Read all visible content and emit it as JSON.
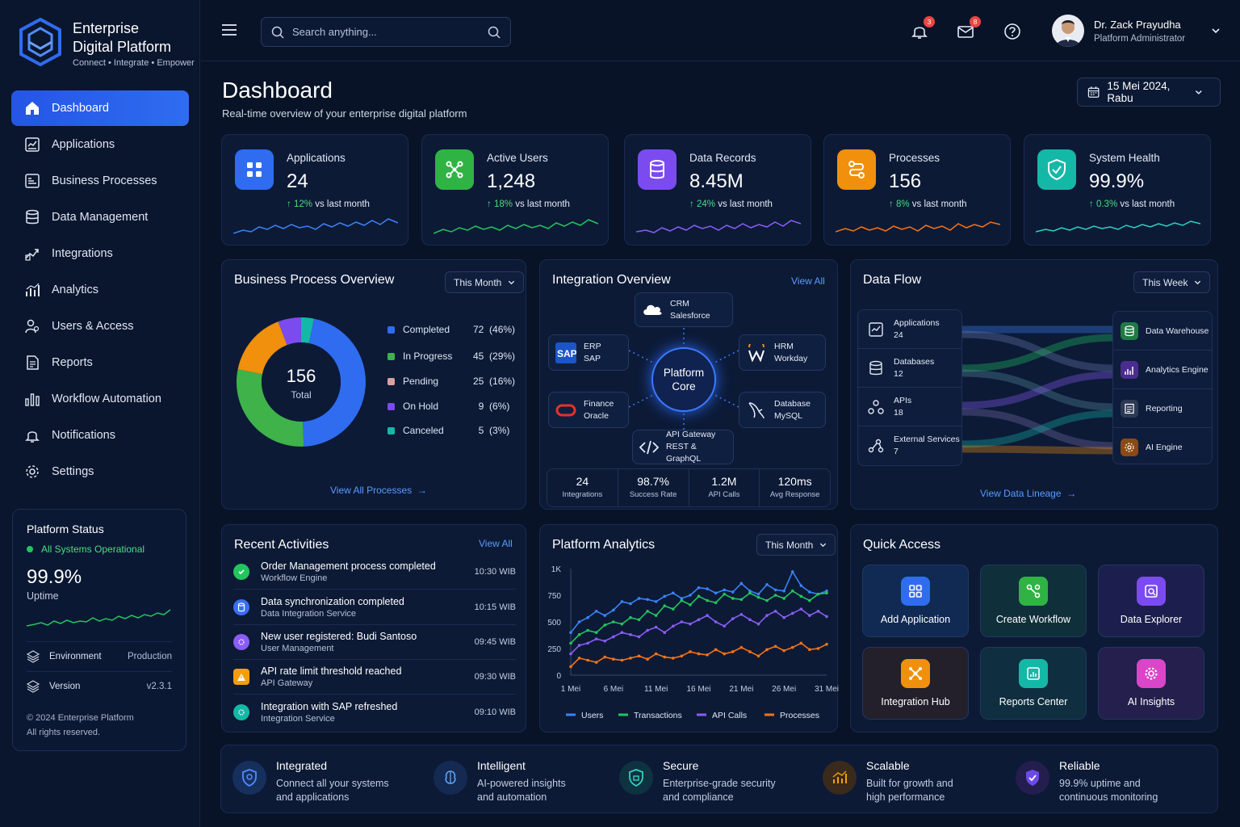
{
  "brand": {
    "title_line1": "Enterprise",
    "title_line2": "Digital Platform",
    "tagline": "Connect • Integrate • Empower"
  },
  "sidebar": {
    "items": [
      {
        "label": "Dashboard",
        "icon": "home-icon",
        "active": true
      },
      {
        "label": "Applications",
        "icon": "applications-icon"
      },
      {
        "label": "Business Processes",
        "icon": "business-processes-icon"
      },
      {
        "label": "Data Management",
        "icon": "database-icon"
      },
      {
        "label": "Integrations",
        "icon": "integrations-icon"
      },
      {
        "label": "Analytics",
        "icon": "analytics-icon"
      },
      {
        "label": "Users & Access",
        "icon": "users-icon"
      },
      {
        "label": "Reports",
        "icon": "reports-icon"
      },
      {
        "label": "Workflow Automation",
        "icon": "workflow-icon"
      },
      {
        "label": "Notifications",
        "icon": "bell-icon"
      },
      {
        "label": "Settings",
        "icon": "gear-icon"
      }
    ]
  },
  "platform_status": {
    "title": "Platform Status",
    "state": "All Systems Operational",
    "uptime_value": "99.9%",
    "uptime_label": "Uptime",
    "environment_label": "Environment",
    "environment_value": "Production",
    "version_label": "Version",
    "version_value": "v2.3.1",
    "copyright": "© 2024 Enterprise Platform",
    "rights": "All rights reserved."
  },
  "topbar": {
    "search_placeholder": "Search anything...",
    "notifications_count": "3",
    "messages_count": "8",
    "user_name": "Dr. Zack Prayudha",
    "user_role": "Platform Administrator"
  },
  "page": {
    "title": "Dashboard",
    "subtitle": "Real-time overview of your enterprise digital platform",
    "date": "15 Mei 2024, Rabu"
  },
  "stats": [
    {
      "label": "Applications",
      "value": "24",
      "change": "12%",
      "suffix": "vs last month",
      "color": "#2f6cf0",
      "icon": "grid-icon"
    },
    {
      "label": "Active Users",
      "value": "1,248",
      "change": "18%",
      "suffix": "vs last month",
      "color": "#2fb344",
      "icon": "network-icon"
    },
    {
      "label": "Data Records",
      "value": "8.45M",
      "change": "24%",
      "suffix": "vs last month",
      "color": "#7b4bf0",
      "icon": "database-icon"
    },
    {
      "label": "Processes",
      "value": "156",
      "change": "8%",
      "suffix": "vs last month",
      "color": "#f0900c",
      "icon": "process-icon"
    },
    {
      "label": "System Health",
      "value": "99.9%",
      "change": "0.3%",
      "suffix": "vs last month",
      "color": "#14b8a6",
      "icon": "shield-icon"
    }
  ],
  "business_process": {
    "title": "Business Process Overview",
    "period": "This Month",
    "total": "156",
    "total_label": "Total",
    "items": [
      {
        "label": "Completed",
        "count": "72",
        "pct": "(46%)",
        "value": 72,
        "color": "#2f6cf0"
      },
      {
        "label": "In Progress",
        "count": "45",
        "pct": "(29%)",
        "value": 45,
        "color": "#3fb24a"
      },
      {
        "label": "Pending",
        "count": "25",
        "pct": "(16%)",
        "value": 25,
        "color": "#f0900c"
      },
      {
        "label": "On Hold",
        "count": "9",
        "pct": "(6%)",
        "value": 9,
        "color": "#7b4bf0"
      },
      {
        "label": "Canceled",
        "count": "5",
        "pct": "(3%)",
        "value": 5,
        "color": "#14b8a6"
      }
    ],
    "link": "View All Processes"
  },
  "integration": {
    "title": "Integration Overview",
    "link": "View All",
    "core_line1": "Platform",
    "core_line2": "Core",
    "nodes": {
      "crm": {
        "title": "CRM",
        "sub": "Salesforce"
      },
      "erp": {
        "title": "ERP",
        "sub": "SAP"
      },
      "hrm": {
        "title": "HRM",
        "sub": "Workday"
      },
      "finance": {
        "title": "Finance",
        "sub": "Oracle"
      },
      "database": {
        "title": "Database",
        "sub": "MySQL"
      },
      "api": {
        "title": "API Gateway",
        "sub": "REST & GraphQL"
      }
    },
    "stats": [
      {
        "value": "24",
        "label": "Integrations"
      },
      {
        "value": "98.7%",
        "label": "Success Rate"
      },
      {
        "value": "1.2M",
        "label": "API Calls"
      },
      {
        "value": "120ms",
        "label": "Avg Response"
      }
    ]
  },
  "data_flow": {
    "title": "Data Flow",
    "period": "This Week",
    "sources": [
      {
        "label": "Applications",
        "count": "24"
      },
      {
        "label": "Databases",
        "count": "12"
      },
      {
        "label": "APIs",
        "count": "18"
      },
      {
        "label": "External Services",
        "count": "7"
      }
    ],
    "targets": [
      {
        "label": "Data Warehouse",
        "color": "#1f7a45"
      },
      {
        "label": "Analytics Engine",
        "color": "#4b2d8f"
      },
      {
        "label": "Reporting",
        "color": "#2e3a55"
      },
      {
        "label": "AI Engine",
        "color": "#8a4a14"
      }
    ],
    "link": "View Data Lineage"
  },
  "activities": {
    "title": "Recent Activities",
    "link": "View All",
    "items": [
      {
        "title": "Order Management process completed",
        "sub": "Workflow Engine",
        "time": "10:30 WIB",
        "color": "#22c55e"
      },
      {
        "title": "Data synchronization completed",
        "sub": "Data Integration Service",
        "time": "10:15 WIB",
        "color": "#3b6ff0"
      },
      {
        "title": "New user registered: Budi Santoso",
        "sub": "User Management",
        "time": "09:45 WIB",
        "color": "#8b5cf6"
      },
      {
        "title": "API rate limit threshold reached",
        "sub": "API Gateway",
        "time": "09:30 WIB",
        "color": "#f59e0b"
      },
      {
        "title": "Integration with SAP refreshed",
        "sub": "Integration Service",
        "time": "09:10 WIB",
        "color": "#14b8a6"
      }
    ]
  },
  "analytics": {
    "title": "Platform Analytics",
    "period": "This Month"
  },
  "chart_data": {
    "type": "line",
    "title": "Platform Analytics",
    "x": [
      1,
      2,
      3,
      4,
      5,
      6,
      7,
      8,
      9,
      10,
      11,
      12,
      13,
      14,
      15,
      16,
      17,
      18,
      19,
      20,
      21,
      22,
      23,
      24,
      25,
      26,
      27,
      28,
      29,
      30,
      31
    ],
    "xticks": [
      "1 Mei",
      "6 Mei",
      "11 Mei",
      "16 Mei",
      "21 Mei",
      "26 Mei",
      "31 Mei"
    ],
    "yticks": [
      "0",
      "250",
      "500",
      "750",
      "1K"
    ],
    "ylim": [
      0,
      1000
    ],
    "series": [
      {
        "name": "Users",
        "color": "#3b82f6",
        "values": [
          400,
          500,
          540,
          600,
          560,
          610,
          690,
          670,
          720,
          710,
          690,
          740,
          770,
          720,
          750,
          820,
          810,
          770,
          800,
          780,
          860,
          790,
          760,
          850,
          800,
          790,
          970,
          840,
          780,
          760,
          790
        ]
      },
      {
        "name": "Transactions",
        "color": "#22c55e",
        "values": [
          300,
          380,
          420,
          400,
          470,
          500,
          480,
          540,
          520,
          600,
          560,
          650,
          620,
          700,
          660,
          740,
          700,
          680,
          760,
          720,
          710,
          770,
          730,
          700,
          750,
          720,
          790,
          740,
          700,
          760,
          770
        ]
      },
      {
        "name": "API Calls",
        "color": "#8b5cf6",
        "values": [
          200,
          280,
          300,
          340,
          320,
          360,
          400,
          380,
          360,
          420,
          450,
          400,
          460,
          500,
          480,
          520,
          560,
          500,
          460,
          530,
          570,
          520,
          480,
          560,
          600,
          540,
          580,
          620,
          560,
          600,
          550
        ]
      },
      {
        "name": "Processes",
        "color": "#f97316",
        "values": [
          80,
          160,
          140,
          120,
          170,
          150,
          140,
          160,
          180,
          150,
          200,
          170,
          160,
          180,
          220,
          200,
          190,
          240,
          200,
          220,
          260,
          220,
          180,
          240,
          270,
          230,
          260,
          300,
          240,
          250,
          290
        ]
      }
    ]
  },
  "quick_access": {
    "title": "Quick Access",
    "items": [
      {
        "label": "Add Application",
        "color": "#2f6cf0",
        "bg": "#102a54"
      },
      {
        "label": "Create Workflow",
        "color": "#2fb344",
        "bg": "#0f2f3a"
      },
      {
        "label": "Data Explorer",
        "color": "#7b4bf0",
        "bg": "#1c1f4e"
      },
      {
        "label": "Integration Hub",
        "color": "#f0900c",
        "bg": "#231f2b"
      },
      {
        "label": "Reports Center",
        "color": "#14b8a6",
        "bg": "#0f2e40"
      },
      {
        "label": "AI Insights",
        "color": "#d946c8",
        "bg": "#241f4c"
      }
    ]
  },
  "features": [
    {
      "title": "Integrated",
      "line1": "Connect all your systems",
      "line2": "and applications",
      "color": "#2f6cf0"
    },
    {
      "title": "Intelligent",
      "line1": "AI-powered insights",
      "line2": "and automation",
      "color": "#3b82f6"
    },
    {
      "title": "Secure",
      "line1": "Enterprise-grade security",
      "line2": "and compliance",
      "color": "#14b8a6"
    },
    {
      "title": "Scalable",
      "line1": "Built for growth and",
      "line2": "high performance",
      "color": "#f0900c"
    },
    {
      "title": "Reliable",
      "line1": "99.9% uptime and",
      "line2": "continuous monitoring",
      "color": "#7b4bf0"
    }
  ]
}
